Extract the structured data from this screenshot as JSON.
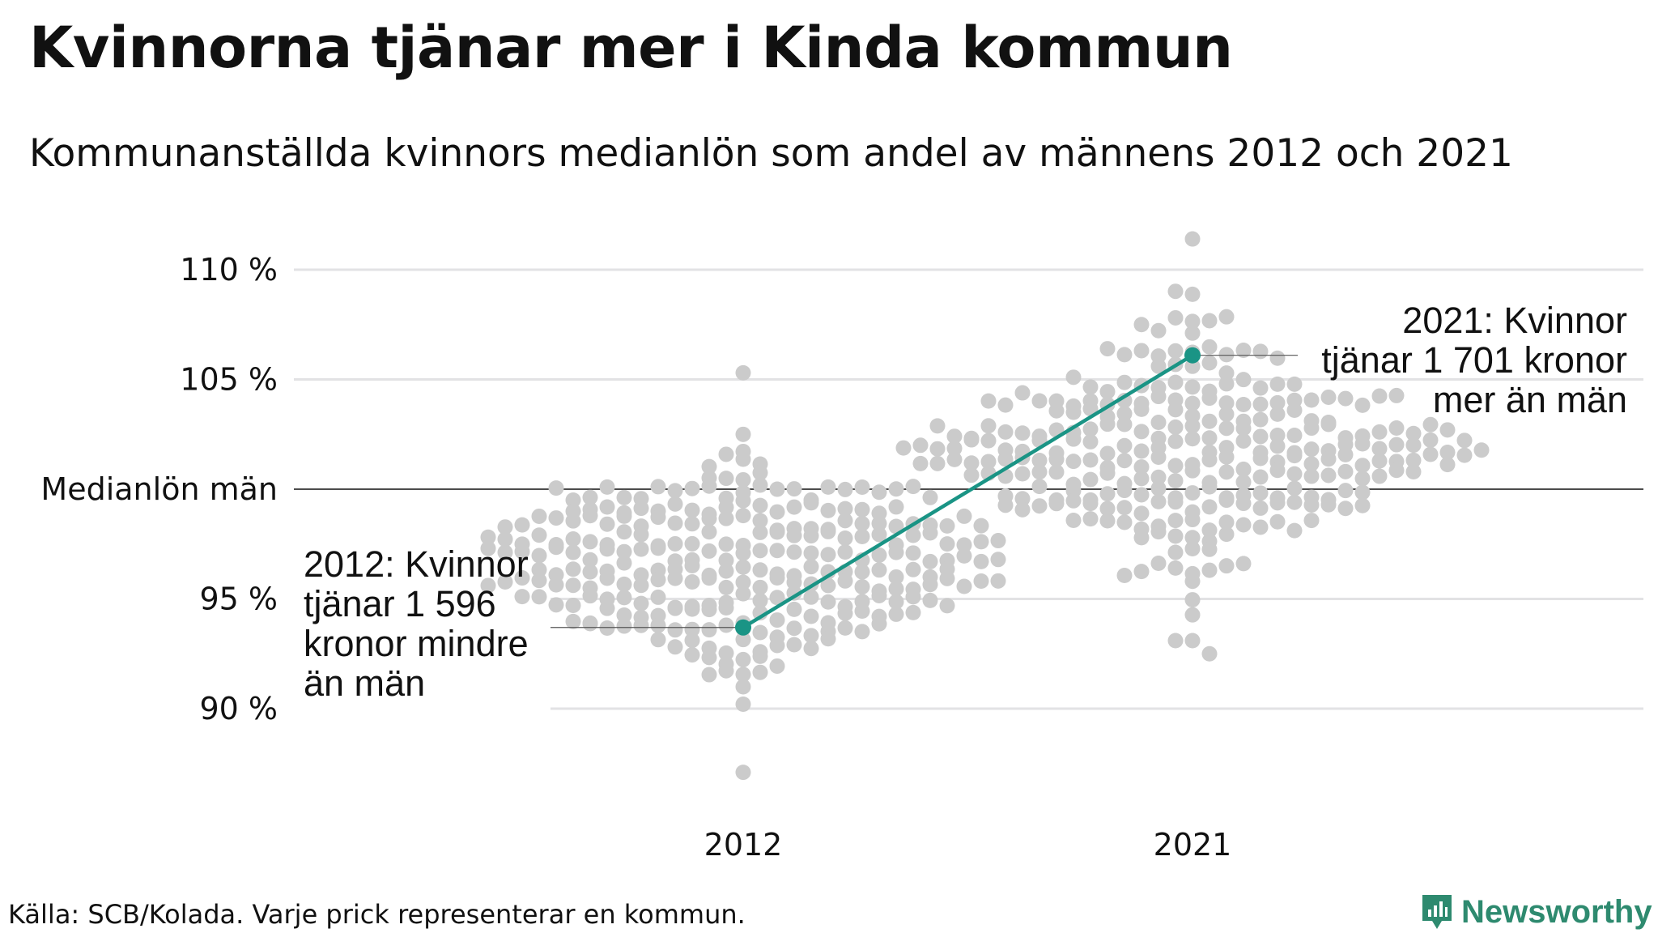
{
  "title": "Kvinnorna tjänar mer i Kinda kommun",
  "subtitle": "Kommunanställda kvinnors medianlön som andel av männens 2012 och 2021",
  "source": "Källa: SCB/Kolada. Varje prick representerar en kommun.",
  "brand": {
    "name": "Newsworthy",
    "color": "#2e8a6f",
    "icon": "newsworthy-logo-icon"
  },
  "colors": {
    "dots": "#cbcbcb",
    "highlight": "#1a9485",
    "grid": "#e2e2e4",
    "baseline": "#111111"
  },
  "chart_data": {
    "type": "scatter",
    "categories": [
      "2012",
      "2021"
    ],
    "y_tick_labels": [
      {
        "value": 110,
        "label": "110 %"
      },
      {
        "value": 105,
        "label": "105 %"
      },
      {
        "value": 100,
        "label": "Medianlön män"
      },
      {
        "value": 95,
        "label": "95 %"
      },
      {
        "value": 90,
        "label": "90 %"
      }
    ],
    "ylim": [
      86,
      112
    ],
    "grid": true,
    "reference_line": {
      "value": 100,
      "label": "Medianlön män"
    },
    "highlight": {
      "name": "Kinda kommun",
      "points": [
        {
          "x": "2012",
          "y": 93.7
        },
        {
          "x": "2021",
          "y": 106.1
        }
      ]
    },
    "annotations": [
      {
        "category": "2012",
        "lines": [
          "2012: Kvinnor",
          "tjänar 1 596",
          "kronor mindre",
          "än män"
        ]
      },
      {
        "category": "2021",
        "lines": [
          "2021: Kvinnor",
          "tjänar 1 701 kronor",
          "mer än män"
        ]
      }
    ],
    "distributions": [
      {
        "category": "2012",
        "center": 96.5,
        "spread": 2.4,
        "min": 87.1,
        "max": 105.3,
        "count": 290
      },
      {
        "category": "2021",
        "center": 101.8,
        "spread": 2.6,
        "min": 92.5,
        "max": 111.4,
        "count": 290
      }
    ]
  }
}
